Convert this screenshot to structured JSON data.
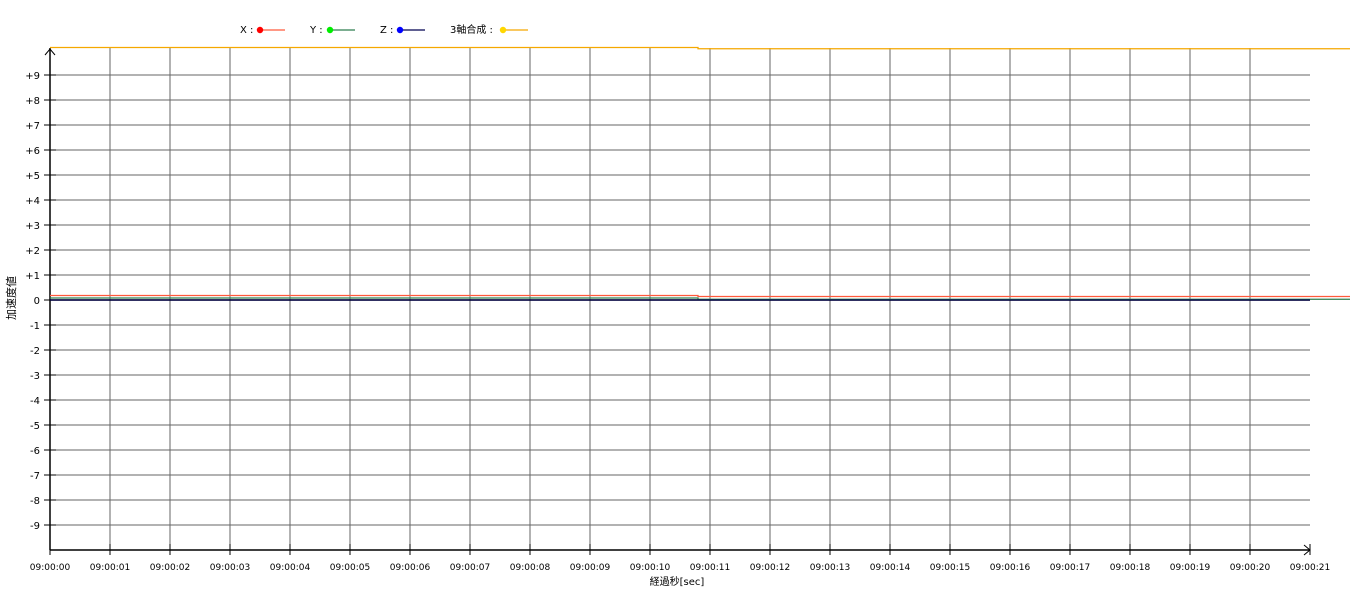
{
  "chart_data": {
    "type": "line",
    "title": "",
    "xlabel": "経過秒[sec]",
    "ylabel": "加速度値",
    "ylim": [
      -10,
      10
    ],
    "yticks": [
      -9,
      -8,
      -7,
      -6,
      -5,
      -4,
      -3,
      -2,
      -1,
      0,
      1,
      2,
      3,
      4,
      5,
      6,
      7,
      8,
      9
    ],
    "ytick_labels": [
      "-9",
      "-8",
      "-7",
      "-6",
      "-5",
      "-4",
      "-3",
      "-2",
      "-1",
      "0",
      "+1",
      "+2",
      "+3",
      "+4",
      "+5",
      "+6",
      "+7",
      "+8",
      "+9"
    ],
    "xlim_sec": [
      0,
      21
    ],
    "xtick_labels": [
      "09:00:00",
      "09:00:01",
      "09:00:02",
      "09:00:03",
      "09:00:04",
      "09:00:05",
      "09:00:06",
      "09:00:07",
      "09:00:08",
      "09:00:09",
      "09:00:10",
      "09:00:11",
      "09:00:12",
      "09:00:13",
      "09:00:14",
      "09:00:15",
      "09:00:16",
      "09:00:17",
      "09:00:18",
      "09:00:19",
      "09:00:20",
      "09:00:21"
    ],
    "grid": true,
    "legend_position": "top",
    "series": [
      {
        "name": "X",
        "legend": "X :",
        "color": "#ff5a3c",
        "marker_color": "#ff0000",
        "x": [
          0,
          10.8,
          10.8,
          21.67
        ],
        "y": [
          0.18,
          0.18,
          0.14,
          0.14
        ]
      },
      {
        "name": "Y",
        "legend": "Y :",
        "color": "#2e7d4f",
        "marker_color": "#00ee00",
        "x": [
          0,
          10.8,
          10.8,
          21.67
        ],
        "y": [
          0.08,
          0.08,
          0.03,
          0.03
        ]
      },
      {
        "name": "Z",
        "legend": "Z :",
        "color": "#000050",
        "marker_color": "#0000ff",
        "x": [
          0,
          21
        ],
        "y": [
          0,
          0
        ]
      },
      {
        "name": "3軸合成",
        "legend": "3軸合成 :",
        "color": "#f5a800",
        "marker_color": "#ffd700",
        "x": [
          0,
          10.8,
          10.8,
          21.67
        ],
        "y": [
          10.1,
          10.1,
          10.05,
          10.05
        ]
      }
    ]
  }
}
